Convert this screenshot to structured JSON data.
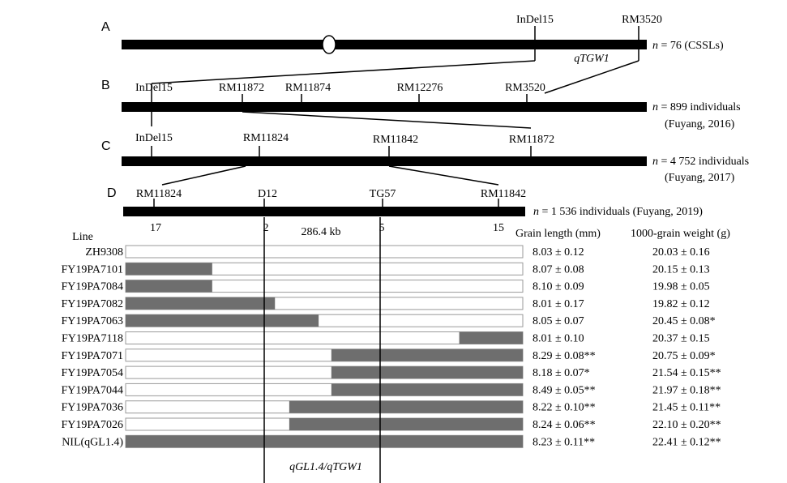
{
  "panels": {
    "A": {
      "letter": "A",
      "markers": [
        "InDel15",
        "RM3520"
      ],
      "locus": "qTGW1",
      "n_label": "n",
      "n_text": " = 76 (CSSLs)"
    },
    "B": {
      "letter": "B",
      "markers": [
        "InDel15",
        "RM11872",
        "RM11874",
        "RM12276",
        "RM3520"
      ],
      "n_label": "n",
      "n_text": " = 899 individuals",
      "note": "(Fuyang, 2016)"
    },
    "C": {
      "letter": "C",
      "markers": [
        "InDel15",
        "RM11824",
        "RM11842",
        "RM11872"
      ],
      "n_label": "n",
      "n_text": " = 4 752 individuals",
      "note": "(Fuyang, 2017)"
    },
    "D": {
      "letter": "D",
      "markers": [
        "RM11824",
        "D12",
        "TG57",
        "RM11842"
      ],
      "counts": [
        "17",
        "2",
        "5",
        "15"
      ],
      "distance": "286.4 kb",
      "n_label": "n",
      "n_text": " = 1 536 individuals (Fuyang, 2019)"
    }
  },
  "table": {
    "headers": {
      "line": "Line",
      "grain_length": "Grain length (mm)",
      "tgw": "1000-grain weight (g)"
    },
    "rows": [
      {
        "line": "ZH9308",
        "gl": "8.03 ± 0.12",
        "tgw": "20.03 ± 0.16",
        "seg": null
      },
      {
        "line": "FY19PA7101",
        "gl": "8.07 ± 0.08",
        "tgw": "20.15 ± 0.13",
        "seg": [
          0.0,
          0.218
        ]
      },
      {
        "line": "FY19PA7084",
        "gl": "8.10 ± 0.09",
        "tgw": "19.98 ± 0.05",
        "seg": [
          0.0,
          0.218
        ]
      },
      {
        "line": "FY19PA7082",
        "gl": "8.01 ± 0.17",
        "tgw": "19.82 ± 0.12",
        "seg": [
          0.0,
          0.376
        ]
      },
      {
        "line": "FY19PA7063",
        "gl": "8.05 ± 0.07",
        "tgw": "20.45 ± 0.08*",
        "seg": [
          0.0,
          0.486
        ]
      },
      {
        "line": "FY19PA7118",
        "gl": "8.01 ± 0.10",
        "tgw": "20.37 ± 0.15",
        "seg": [
          0.84,
          1.0
        ]
      },
      {
        "line": "FY19PA7071",
        "gl": "8.29 ± 0.08**",
        "tgw": "20.75 ± 0.09*",
        "seg": [
          0.518,
          1.0
        ]
      },
      {
        "line": "FY19PA7054",
        "gl": "8.18 ± 0.07*",
        "tgw": "21.54 ± 0.15**",
        "seg": [
          0.518,
          1.0
        ]
      },
      {
        "line": "FY19PA7044",
        "gl": "8.49 ± 0.05**",
        "tgw": "21.97 ± 0.18**",
        "seg": [
          0.518,
          1.0
        ]
      },
      {
        "line": "FY19PA7036",
        "gl": "8.22 ± 0.10**",
        "tgw": "21.45 ± 0.11**",
        "seg": [
          0.412,
          1.0
        ]
      },
      {
        "line": "FY19PA7026",
        "gl": "8.24 ± 0.06**",
        "tgw": "22.10 ± 0.20**",
        "seg": [
          0.412,
          1.0
        ]
      },
      {
        "line": "NIL(qGL1.4)",
        "gl": "8.23 ± 0.11**",
        "tgw": "22.41 ± 0.12**",
        "seg": [
          0.0,
          1.0
        ]
      }
    ]
  },
  "bottom_label": "qGL1.4/qTGW1",
  "colors": {
    "segment": "#6e6e6e",
    "line": "#000000"
  }
}
